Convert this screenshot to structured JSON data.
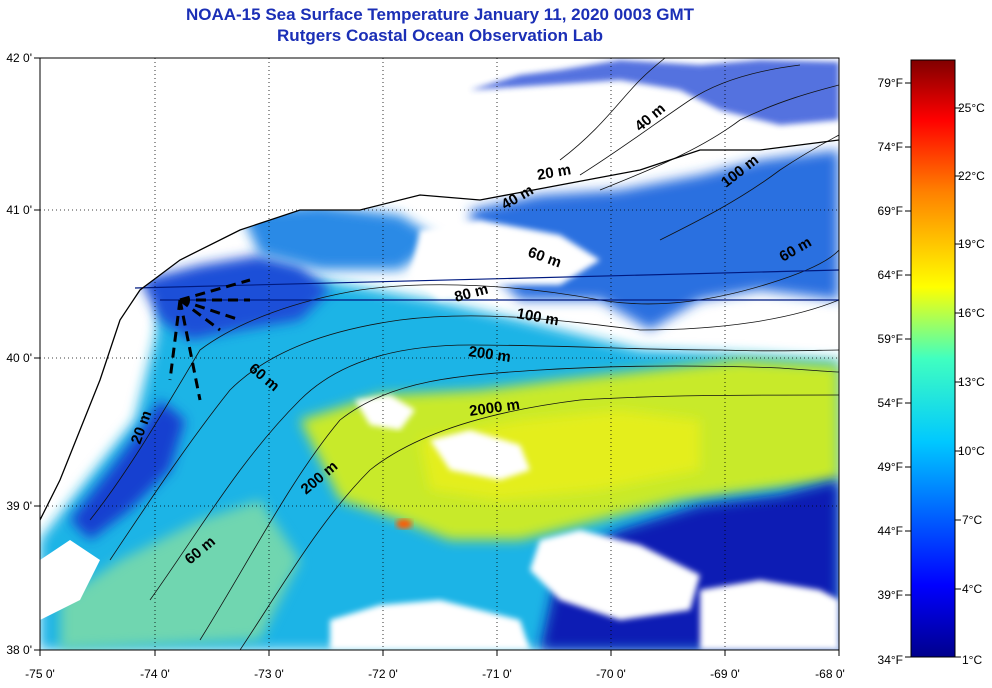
{
  "title": {
    "line1": "NOAA-15 Sea Surface Temperature January 11, 2020 0003 GMT",
    "line2": "Rutgers Coastal Ocean Observation Lab"
  },
  "map": {
    "lon_range": [
      -75,
      -68
    ],
    "lat_range": [
      38,
      42
    ],
    "lon_ticks": [
      "-75 0'",
      "-74 0'",
      "-73 0'",
      "-72 0'",
      "-71 0'",
      "-70 0'",
      "-69 0'",
      "-68 0'"
    ],
    "lat_ticks": [
      "38 0'",
      "39 0'",
      "40 0'",
      "41 0'",
      "42 0'"
    ],
    "grid": "dotted",
    "colors": {
      "land_and_cloud": "#ffffff",
      "cold_water": "#0a1fb4",
      "mid_water": "#1fb4e6",
      "warm_water": "#c8ea2a"
    }
  },
  "contour_labels": [
    {
      "text": "40 m"
    },
    {
      "text": "20 m"
    },
    {
      "text": "100 m"
    },
    {
      "text": "40 m"
    },
    {
      "text": "60 m"
    },
    {
      "text": "60 m"
    },
    {
      "text": "80 m"
    },
    {
      "text": "100 m"
    },
    {
      "text": "200 m"
    },
    {
      "text": "60 m"
    },
    {
      "text": "2000 m"
    },
    {
      "text": "20 m"
    },
    {
      "text": "200 m"
    },
    {
      "text": "60 m"
    }
  ],
  "colorbar": {
    "fahrenheit_labels": [
      "79°F",
      "74°F",
      "69°F",
      "64°F",
      "59°F",
      "54°F",
      "49°F",
      "44°F",
      "39°F",
      "34°F"
    ],
    "celsius_labels": [
      "25°C",
      "22°C",
      "19°C",
      "16°C",
      "13°C",
      "10°C",
      "7°C",
      "4°C",
      "1°C"
    ],
    "colors": [
      "#00008c",
      "#0000ff",
      "#0080ff",
      "#00ffff",
      "#80ff80",
      "#ffff00",
      "#ff8000",
      "#ff0000",
      "#800000"
    ]
  }
}
